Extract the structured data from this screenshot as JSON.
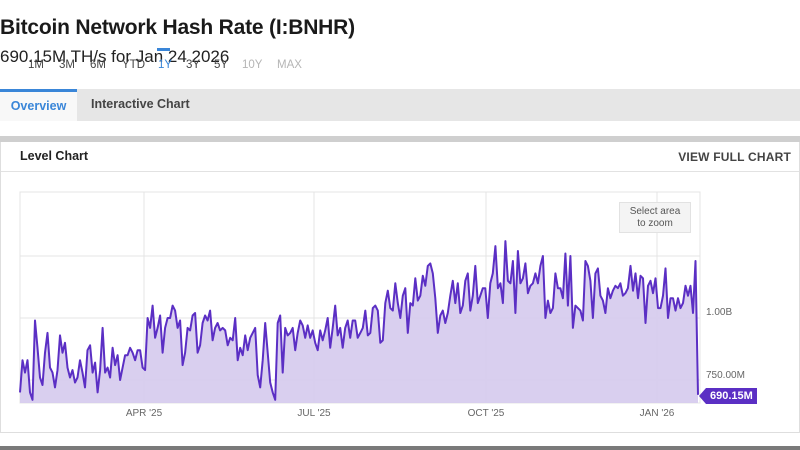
{
  "header": {
    "title": "Bitcoin Network Hash Rate (I:BNHR)",
    "subtitle": "690.15M TH/s for Jan 24 2026"
  },
  "tabs": [
    {
      "label": "Overview",
      "active": true
    },
    {
      "label": "Interactive Chart",
      "active": false
    }
  ],
  "panel": {
    "title": "Level Chart",
    "view_full_label": "VIEW FULL CHART"
  },
  "ranges": [
    {
      "label": "1M",
      "state": "normal"
    },
    {
      "label": "3M",
      "state": "normal"
    },
    {
      "label": "6M",
      "state": "normal"
    },
    {
      "label": "YTD",
      "state": "normal"
    },
    {
      "label": "1Y",
      "state": "active"
    },
    {
      "label": "3Y",
      "state": "normal"
    },
    {
      "label": "5Y",
      "state": "normal"
    },
    {
      "label": "10Y",
      "state": "disabled"
    },
    {
      "label": "MAX",
      "state": "disabled"
    }
  ],
  "zoom_hint": {
    "line1": "Select area",
    "line2": "to zoom"
  },
  "colors": {
    "accent": "#3a86d8",
    "series_line": "#5b2fc4",
    "series_fill": "#d7ccee",
    "grid": "#e4e4e4"
  },
  "current_value_label": "690.15M",
  "chart_data": {
    "type": "area",
    "title": "Bitcoin Network Hash Rate (I:BNHR)",
    "subtitle": "690.15M TH/s for Jan 24 2026",
    "xlabel": "",
    "ylabel": "TH/s",
    "x_tick_labels": [
      "APR '25",
      "JUL '25",
      "OCT '25",
      "JAN '26"
    ],
    "y_tick_labels": [
      "750.00M",
      "1.00B"
    ],
    "ylim": [
      655000000,
      1500000000
    ],
    "grid": true,
    "y_axis_position": "right",
    "last_value": 690150000,
    "last_value_label": "690.15M",
    "x_start": "2025-01-24",
    "x_end": "2026-01-24",
    "series": [
      {
        "name": "Bitcoin Network Hash Rate",
        "unit": "TH/s",
        "values_millions": [
          700,
          830,
          780,
          830,
          700,
          670,
          990,
          880,
          760,
          730,
          860,
          940,
          800,
          780,
          720,
          790,
          930,
          860,
          900,
          800,
          760,
          790,
          740,
          760,
          830,
          780,
          720,
          870,
          890,
          780,
          820,
          700,
          790,
          960,
          780,
          800,
          760,
          880,
          810,
          850,
          750,
          800,
          850,
          850,
          880,
          860,
          830,
          870,
          870,
          800,
          790,
          1000,
          960,
          1050,
          920,
          960,
          1010,
          860,
          960,
          1000,
          1000,
          1050,
          1030,
          960,
          990,
          810,
          860,
          960,
          950,
          1010,
          1020,
          860,
          890,
          980,
          1010,
          990,
          1030,
          910,
          960,
          980,
          950,
          960,
          950,
          890,
          920,
          910,
          1000,
          830,
          880,
          850,
          930,
          870,
          920,
          940,
          960,
          770,
          720,
          830,
          980,
          860,
          740,
          700,
          670,
          980,
          1010,
          780,
          960,
          930,
          940,
          960,
          870,
          940,
          990,
          970,
          920,
          970,
          920,
          950,
          900,
          870,
          950,
          910,
          950,
          1000,
          880,
          960,
          1050,
          930,
          960,
          880,
          960,
          990,
          920,
          990,
          990,
          920,
          940,
          960,
          1030,
          930,
          940,
          1040,
          1050,
          1030,
          900,
          910,
          1060,
          1110,
          1040,
          1030,
          1140,
          1060,
          1000,
          1090,
          1120,
          940,
          1060,
          1050,
          1160,
          1070,
          1090,
          1170,
          1130,
          1210,
          1220,
          1180,
          1080,
          940,
          1010,
          1030,
          980,
          1020,
          1090,
          1150,
          1060,
          1140,
          1020,
          1050,
          1150,
          1180,
          1030,
          1090,
          1210,
          1060,
          1090,
          1120,
          1120,
          1000,
          1140,
          1180,
          1290,
          1120,
          1140,
          1060,
          1310,
          1150,
          1140,
          1230,
          1020,
          1270,
          1140,
          1160,
          1220,
          1100,
          1130,
          1140,
          1180,
          1140,
          1210,
          1250,
          1000,
          1070,
          1020,
          1040,
          1180,
          1120,
          1120,
          1080,
          1260,
          1050,
          1250,
          960,
          1050,
          1040,
          1030,
          990,
          1230,
          1210,
          1150,
          1000,
          1180,
          1200,
          1090,
          1070,
          1020,
          1120,
          1080,
          1110,
          1130,
          1120,
          1140,
          1090,
          1100,
          1120,
          1210,
          1110,
          1180,
          1080,
          1170,
          1160,
          980,
          1130,
          1150,
          1100,
          1160,
          1040,
          1040,
          1090,
          1200,
          1000,
          1080,
          1080,
          1030,
          1080,
          1040,
          1060,
          1130,
          1090,
          1130,
          1020,
          1230,
          690.15
        ]
      }
    ]
  }
}
